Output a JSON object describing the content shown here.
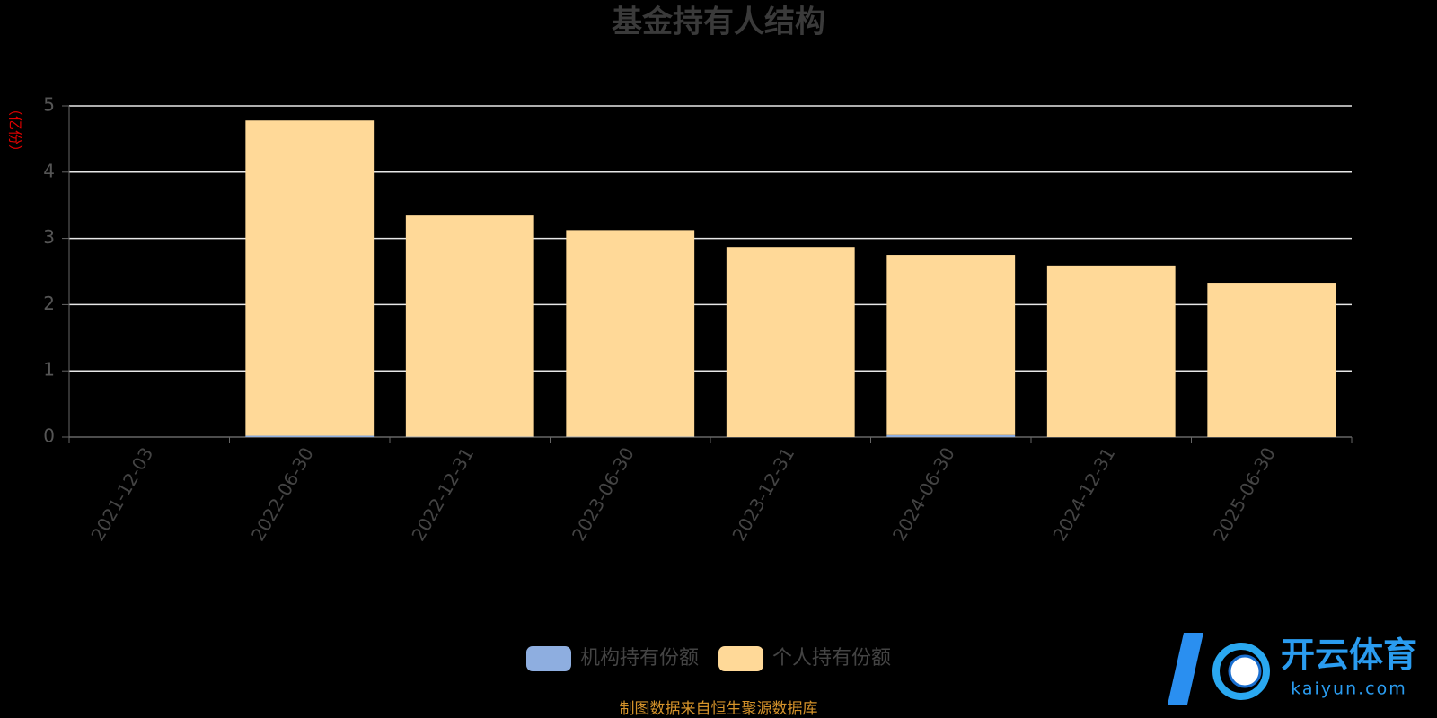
{
  "chart_data": {
    "type": "stacked_bar",
    "title": "基金持有人结构",
    "y_label": "（亿份）",
    "categories": [
      "2021-12-03",
      "2022-06-30",
      "2022-12-31",
      "2023-06-30",
      "2023-12-31",
      "2024-06-30",
      "2024-12-31",
      "2025-06-30"
    ],
    "series": [
      {
        "name": "机构持有份额",
        "color": "#8eaee0",
        "values": [
          0,
          0.02,
          0.005,
          0.005,
          0,
          0.03,
          0,
          0
        ]
      },
      {
        "name": "个人持有份额",
        "color": "#ffd998",
        "values": [
          0,
          4.76,
          3.34,
          3.12,
          2.87,
          2.72,
          2.59,
          2.33
        ]
      }
    ],
    "ylim": [
      0,
      5
    ],
    "yticks": [
      0,
      1,
      2,
      3,
      4,
      5
    ],
    "grid": true,
    "legend": "bottom",
    "source": "制图数据来自恒生聚源数据库",
    "watermark": {
      "brand": "开云体育",
      "site": "kaiyun.com"
    }
  }
}
